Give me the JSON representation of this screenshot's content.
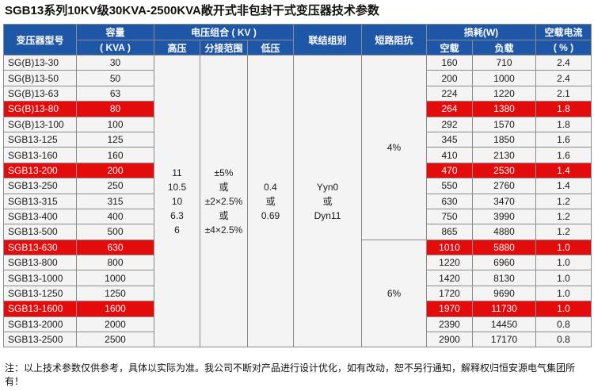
{
  "title": "SGB13系列10KV级30KVA-2500KVA敞开式非包封干式变压器技术参数",
  "header": {
    "model": "变压器型号",
    "capacity": "容量",
    "capacity_unit": "( KVA )",
    "voltage_group": "电压组合 ( KV )",
    "high_voltage": "高压",
    "tap_range": "分接范围",
    "low_voltage": "低压",
    "connection_group": "联结组别",
    "short_circuit_impedance": "短路阻抗",
    "loss": "损耗(W)",
    "no_load_loss": "空载",
    "load_loss": "负载",
    "no_load_current": "空载电流",
    "no_load_current_unit": "( % )"
  },
  "merged": {
    "high_voltage": [
      "11",
      "10.5",
      "10",
      "6.3",
      "6"
    ],
    "tap_range": [
      "±5%",
      "或",
      "±2×2.5%",
      "或",
      "±4×2.5%"
    ],
    "low_voltage": [
      "0.4",
      "或",
      "0.69"
    ],
    "connection_group": [
      "Yyn0",
      "或",
      "Dyn11"
    ],
    "impedance_small": "4%",
    "impedance_large": "6%"
  },
  "rows": [
    {
      "model": "SG(B)13-30",
      "capacity": "30",
      "no_load": "160",
      "load": "710",
      "current": "2.4",
      "highlight": false
    },
    {
      "model": "SG(B)13-50",
      "capacity": "50",
      "no_load": "200",
      "load": "1000",
      "current": "2.4",
      "highlight": false
    },
    {
      "model": "SG(B)13-63",
      "capacity": "63",
      "no_load": "224",
      "load": "1220",
      "current": "2.1",
      "highlight": false
    },
    {
      "model": "SG(B)13-80",
      "capacity": "80",
      "no_load": "264",
      "load": "1380",
      "current": "1.8",
      "highlight": true
    },
    {
      "model": "SG(B)13-100",
      "capacity": "100",
      "no_load": "292",
      "load": "1570",
      "current": "1.8",
      "highlight": false
    },
    {
      "model": "SGB13-125",
      "capacity": "125",
      "no_load": "345",
      "load": "1850",
      "current": "1.6",
      "highlight": false
    },
    {
      "model": "SGB13-160",
      "capacity": "160",
      "no_load": "410",
      "load": "2130",
      "current": "1.6",
      "highlight": false
    },
    {
      "model": "SGB13-200",
      "capacity": "200",
      "no_load": "470",
      "load": "2530",
      "current": "1.4",
      "highlight": true
    },
    {
      "model": "SGB13-250",
      "capacity": "250",
      "no_load": "550",
      "load": "2760",
      "current": "1.4",
      "highlight": false
    },
    {
      "model": "SGB13-315",
      "capacity": "315",
      "no_load": "630",
      "load": "3470",
      "current": "1.2",
      "highlight": false
    },
    {
      "model": "SGB13-400",
      "capacity": "400",
      "no_load": "750",
      "load": "3990",
      "current": "1.2",
      "highlight": false
    },
    {
      "model": "SGB13-500",
      "capacity": "500",
      "no_load": "865",
      "load": "4880",
      "current": "1.2",
      "highlight": false
    },
    {
      "model": "SGB13-630",
      "capacity": "630",
      "no_load": "1010",
      "load": "5880",
      "current": "1.0",
      "highlight": true
    },
    {
      "model": "SGB13-800",
      "capacity": "800",
      "no_load": "1220",
      "load": "6960",
      "current": "1.0",
      "highlight": false
    },
    {
      "model": "SGB13-1000",
      "capacity": "1000",
      "no_load": "1420",
      "load": "8130",
      "current": "1.0",
      "highlight": false
    },
    {
      "model": "SGB13-1250",
      "capacity": "1250",
      "no_load": "1720",
      "load": "9690",
      "current": "1.0",
      "highlight": false
    },
    {
      "model": "SGB13-1600",
      "capacity": "1600",
      "no_load": "1970",
      "load": "11730",
      "current": "1.0",
      "highlight": true
    },
    {
      "model": "SGB13-2000",
      "capacity": "2000",
      "no_load": "2390",
      "load": "14450",
      "current": "0.8",
      "highlight": false
    },
    {
      "model": "SGB13-2500",
      "capacity": "2500",
      "no_load": "2900",
      "load": "17170",
      "current": "0.8",
      "highlight": false
    }
  ],
  "note": "注：以上技术参数仅供参考，具体以实际为准。我公司不断对产品进行设计优化，如有改动，恕不另行通知，解释权归恒安源电气集团所有！",
  "colors": {
    "header_bg": "#1f57a8",
    "highlight_bg": "#e30b0b",
    "cell_bg": "#f4f4f4"
  }
}
